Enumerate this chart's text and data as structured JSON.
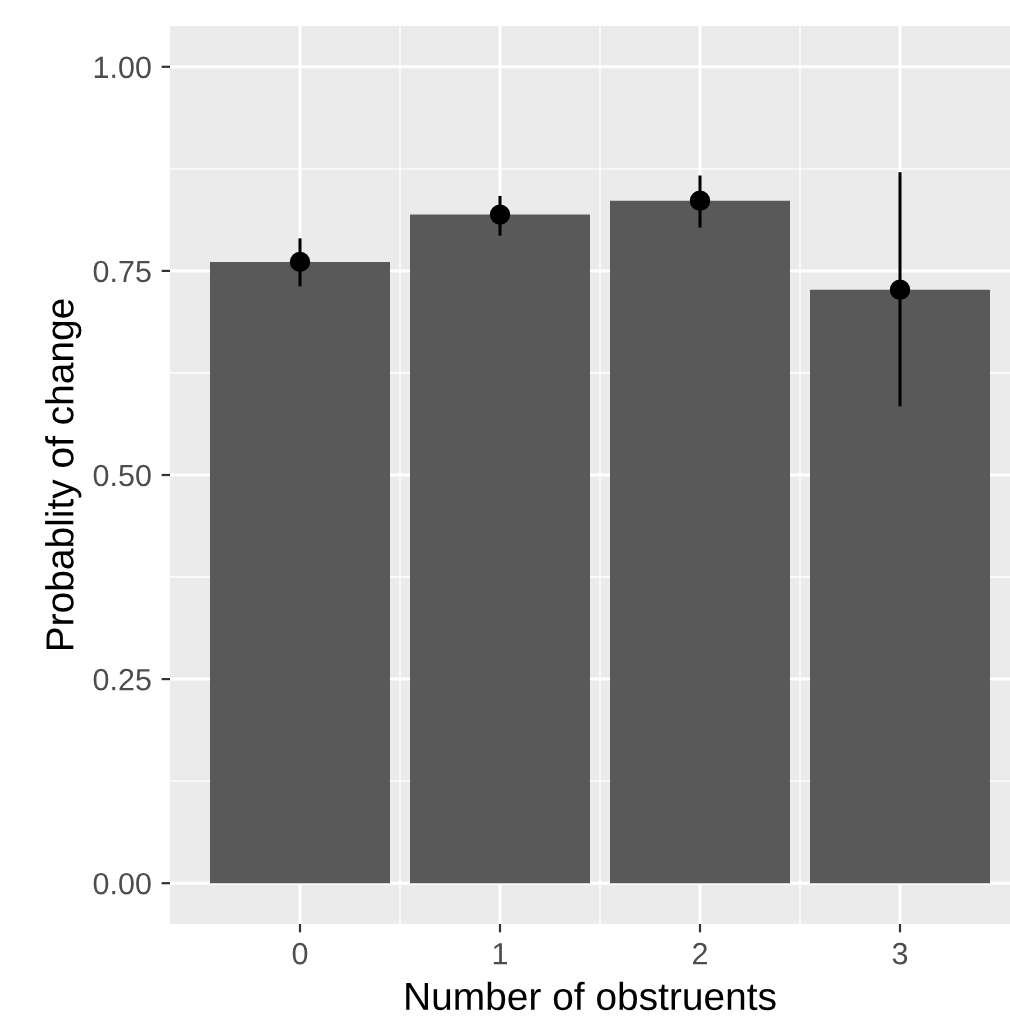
{
  "chart_data": {
    "type": "bar",
    "xlabel": "Number of obstruents",
    "ylabel": "Probablity of change",
    "x": [
      0,
      1,
      2,
      3
    ],
    "xlim": [
      -0.65,
      3.55
    ],
    "xticks": [
      0,
      1,
      2,
      3
    ],
    "ylim": [
      -0.05,
      1.05
    ],
    "yticks": [
      {
        "value": 0,
        "label": "0.00"
      },
      {
        "value": 0.25,
        "label": "0.25"
      },
      {
        "value": 0.5,
        "label": "0.50"
      },
      {
        "value": 0.75,
        "label": "0.75"
      },
      {
        "value": 1,
        "label": "1.00"
      }
    ],
    "grid": true,
    "series": [
      {
        "color": "#595959",
        "values": [
          0.761,
          0.819,
          0.836,
          0.727
        ]
      },
      {
        "type": "scatter",
        "color": "#000000",
        "marker": "circle",
        "values": [
          0.761,
          0.819,
          0.836,
          0.727
        ],
        "errors": [
          [
            0.733,
            0.788
          ],
          [
            0.795,
            0.84
          ],
          [
            0.805,
            0.865
          ],
          [
            0.586,
            0.869
          ]
        ]
      }
    ]
  }
}
